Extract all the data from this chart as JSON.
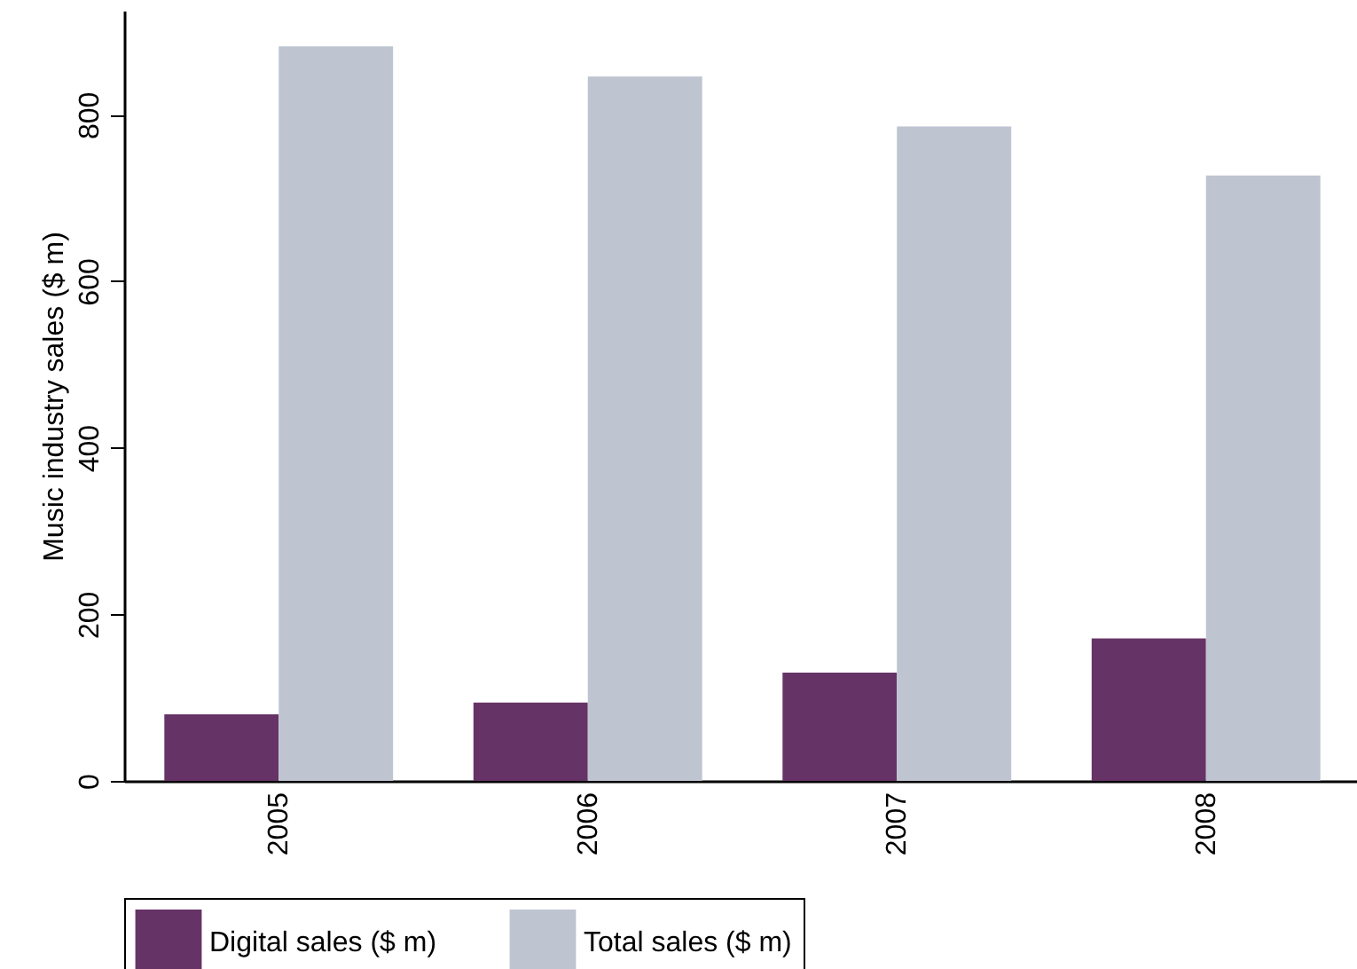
{
  "chart_data": {
    "type": "bar",
    "ylabel": "Music industry sales ($ m)",
    "categories": [
      "2005",
      "2006",
      "2007",
      "2008"
    ],
    "series": [
      {
        "name": "Digital sales ($ m)",
        "color": "#663366",
        "values": [
          80,
          94,
          130,
          171
        ]
      },
      {
        "name": "Total sales ($ m)",
        "color": "#bec4d0",
        "values": [
          882,
          846,
          786,
          727
        ]
      }
    ],
    "ylim": [
      0,
      925
    ],
    "yticks": [
      0,
      200,
      400,
      600,
      800
    ],
    "grid": false,
    "legend": "bottom"
  }
}
